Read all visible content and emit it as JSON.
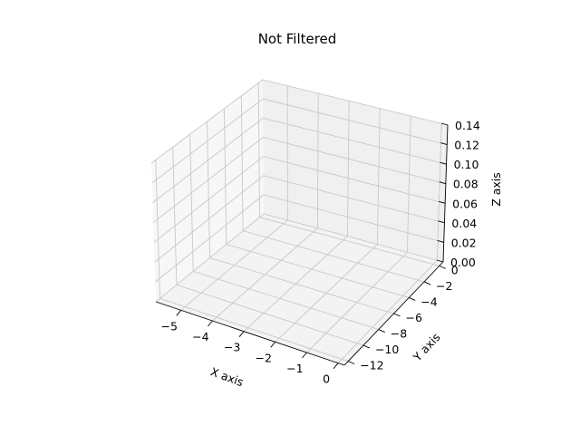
{
  "chart_data": {
    "type": "scatter",
    "projection": "3d",
    "title": "Not Filtered",
    "xlabel": "X axis",
    "ylabel": "Y axis",
    "zlabel": "Z axis",
    "xlim": [
      -5.8,
      0.2
    ],
    "ylim": [
      -12.5,
      0.5
    ],
    "zlim": [
      0,
      0.14
    ],
    "x_ticks": [
      -5,
      -4,
      -3,
      -2,
      -1,
      0
    ],
    "y_ticks": [
      -12,
      -10,
      -8,
      -6,
      -4,
      -2,
      0
    ],
    "z_ticks": [
      "0.00",
      "0.02",
      "0.04",
      "0.06",
      "0.08",
      "0.10",
      "0.12",
      "0.14"
    ],
    "grid": true,
    "series": []
  }
}
